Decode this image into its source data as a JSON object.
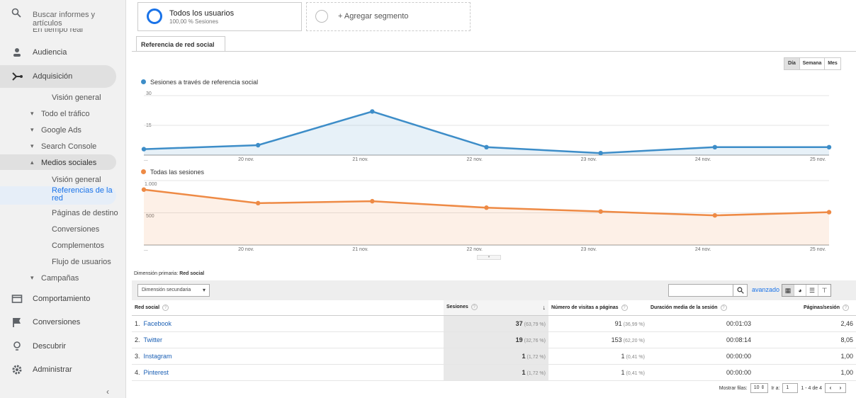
{
  "sidebar": {
    "search_placeholder": "Buscar informes y artículos",
    "cut_label": "En tiempo real",
    "items": {
      "audiencia": "Audiencia",
      "adquisicion": "Adquisición",
      "comportamiento": "Comportamiento",
      "conversiones": "Conversiones",
      "descubrir": "Descubrir",
      "administrar": "Administrar"
    },
    "adq_sub": {
      "vision": "Visión general",
      "todo": "Todo el tráfico",
      "ads": "Google Ads",
      "console": "Search Console",
      "medios": "Medios sociales",
      "campanas": "Campañas"
    },
    "medios_sub": {
      "vision": "Visión general",
      "referencias": "Referencias de la red",
      "paginas": "Páginas de destino",
      "conversiones": "Conversiones",
      "complementos": "Complementos",
      "flujo": "Flujo de usuarios"
    }
  },
  "segments": {
    "all_title": "Todos los usuarios",
    "all_sub": "100,00 % Sesiones",
    "add": "+ Agregar segmento"
  },
  "tab": "Referencia de red social",
  "period": {
    "day": "Día",
    "week": "Semana",
    "month": "Mes"
  },
  "colors": {
    "blue": "#3d8dc8",
    "orange": "#ee8a45"
  },
  "chart_data": [
    {
      "type": "line",
      "title": "Sesiones a través de referencia social",
      "x": [
        "...",
        "20 nov.",
        "21 nov.",
        "22 nov.",
        "23 nov.",
        "24 nov.",
        "25 nov."
      ],
      "series": [
        {
          "name": "Sesiones a través de referencia social",
          "values": [
            3,
            5,
            22,
            4,
            1,
            4,
            4
          ]
        }
      ],
      "yticks": [
        "30",
        "15"
      ],
      "ylim": [
        0,
        30
      ],
      "grid": true
    },
    {
      "type": "line",
      "title": "Todas las sesiones",
      "x": [
        "...",
        "20 nov.",
        "21 nov.",
        "22 nov.",
        "23 nov.",
        "24 nov.",
        "25 nov."
      ],
      "series": [
        {
          "name": "Todas las sesiones",
          "values": [
            860,
            650,
            680,
            580,
            520,
            460,
            510
          ]
        }
      ],
      "yticks": [
        "1.000",
        "500"
      ],
      "ylim": [
        0,
        1000
      ],
      "grid": true
    }
  ],
  "dimension": {
    "label": "Dimensión primaria:",
    "value": "Red social",
    "secondary": "Dimensión secundaria",
    "advanced": "avanzado"
  },
  "table": {
    "headers": [
      "Red social",
      "Sesiones",
      "Número de visitas a páginas",
      "Duración media de la sesión",
      "Páginas/sesión"
    ],
    "rows": [
      {
        "idx": "1.",
        "name": "Facebook",
        "sessions": "37",
        "spct": "(63,79 %)",
        "views": "91",
        "vpct": "(36,99 %)",
        "dur": "00:01:03",
        "pps": "2,46"
      },
      {
        "idx": "2.",
        "name": "Twitter",
        "sessions": "19",
        "spct": "(32,76 %)",
        "views": "153",
        "vpct": "(62,20 %)",
        "dur": "00:08:14",
        "pps": "8,05"
      },
      {
        "idx": "3.",
        "name": "Instagram",
        "sessions": "1",
        "spct": "(1,72 %)",
        "views": "1",
        "vpct": "(0,41 %)",
        "dur": "00:00:00",
        "pps": "1,00"
      },
      {
        "idx": "4.",
        "name": "Pinterest",
        "sessions": "1",
        "spct": "(1,72 %)",
        "views": "1",
        "vpct": "(0,41 %)",
        "dur": "00:00:00",
        "pps": "1,00"
      }
    ]
  },
  "pager": {
    "show_rows": "Mostrar filas:",
    "rows": "10",
    "goto": "Ir a:",
    "page": "1",
    "range": "1 - 4 de 4"
  }
}
